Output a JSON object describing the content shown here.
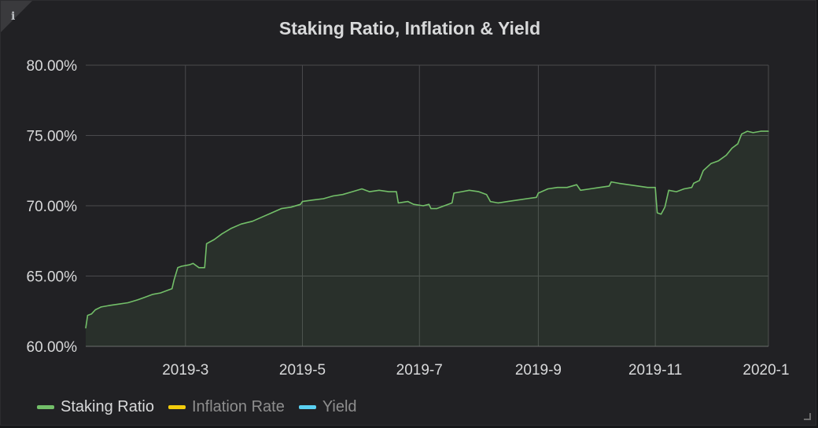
{
  "panel": {
    "title": "Staking Ratio, Inflation & Yield",
    "info_icon": "i"
  },
  "colors": {
    "staking_ratio": "#73bf69",
    "inflation_rate": "#f2cc0c",
    "yield": "#5ad1f2",
    "grid": "#4a4a4d",
    "text": "#d8d9da"
  },
  "chart_data": {
    "type": "line",
    "title": "Staking Ratio, Inflation & Yield",
    "xlabel": "",
    "ylabel": "",
    "x_range": [
      "2019-01-08",
      "2019-12-30"
    ],
    "ylim": [
      60,
      80
    ],
    "y_ticks": [
      "60.00%",
      "65.00%",
      "70.00%",
      "75.00%",
      "80.00%"
    ],
    "x_ticks": [
      "2019-3",
      "2019-5",
      "2019-7",
      "2019-9",
      "2019-11",
      "2020-1"
    ],
    "grid": true,
    "legend_position": "bottom-left",
    "series": [
      {
        "name": "Staking Ratio",
        "visible": true,
        "fill": true,
        "points": [
          [
            "2019-01-08",
            61.3
          ],
          [
            "2019-01-09",
            62.2
          ],
          [
            "2019-01-11",
            62.3
          ],
          [
            "2019-01-13",
            62.6
          ],
          [
            "2019-01-16",
            62.8
          ],
          [
            "2019-01-20",
            62.9
          ],
          [
            "2019-01-25",
            63.0
          ],
          [
            "2019-01-30",
            63.1
          ],
          [
            "2019-02-04",
            63.3
          ],
          [
            "2019-02-08",
            63.5
          ],
          [
            "2019-02-12",
            63.7
          ],
          [
            "2019-02-16",
            63.8
          ],
          [
            "2019-02-20",
            64.0
          ],
          [
            "2019-02-22",
            64.1
          ],
          [
            "2019-02-23",
            64.7
          ],
          [
            "2019-02-25",
            65.6
          ],
          [
            "2019-02-27",
            65.7
          ],
          [
            "2019-03-03",
            65.8
          ],
          [
            "2019-03-05",
            65.9
          ],
          [
            "2019-03-08",
            65.6
          ],
          [
            "2019-03-11",
            65.6
          ],
          [
            "2019-03-12",
            67.3
          ],
          [
            "2019-03-16",
            67.6
          ],
          [
            "2019-03-20",
            68.0
          ],
          [
            "2019-03-25",
            68.4
          ],
          [
            "2019-03-30",
            68.7
          ],
          [
            "2019-04-05",
            68.9
          ],
          [
            "2019-04-10",
            69.2
          ],
          [
            "2019-04-15",
            69.5
          ],
          [
            "2019-04-20",
            69.8
          ],
          [
            "2019-04-25",
            69.9
          ],
          [
            "2019-04-30",
            70.1
          ],
          [
            "2019-05-01",
            70.3
          ],
          [
            "2019-05-06",
            70.4
          ],
          [
            "2019-05-12",
            70.5
          ],
          [
            "2019-05-17",
            70.7
          ],
          [
            "2019-05-22",
            70.8
          ],
          [
            "2019-05-27",
            71.0
          ],
          [
            "2019-06-01",
            71.2
          ],
          [
            "2019-06-05",
            71.0
          ],
          [
            "2019-06-10",
            71.1
          ],
          [
            "2019-06-15",
            71.0
          ],
          [
            "2019-06-19",
            71.0
          ],
          [
            "2019-06-20",
            70.2
          ],
          [
            "2019-06-25",
            70.3
          ],
          [
            "2019-06-28",
            70.1
          ],
          [
            "2019-07-03",
            70.0
          ],
          [
            "2019-07-06",
            70.1
          ],
          [
            "2019-07-07",
            69.8
          ],
          [
            "2019-07-10",
            69.8
          ],
          [
            "2019-07-14",
            70.0
          ],
          [
            "2019-07-18",
            70.2
          ],
          [
            "2019-07-19",
            70.9
          ],
          [
            "2019-07-23",
            71.0
          ],
          [
            "2019-07-27",
            71.1
          ],
          [
            "2019-08-01",
            71.0
          ],
          [
            "2019-08-05",
            70.8
          ],
          [
            "2019-08-07",
            70.3
          ],
          [
            "2019-08-11",
            70.2
          ],
          [
            "2019-08-16",
            70.3
          ],
          [
            "2019-08-21",
            70.4
          ],
          [
            "2019-08-26",
            70.5
          ],
          [
            "2019-08-31",
            70.6
          ],
          [
            "2019-09-01",
            70.9
          ],
          [
            "2019-09-06",
            71.2
          ],
          [
            "2019-09-11",
            71.3
          ],
          [
            "2019-09-16",
            71.3
          ],
          [
            "2019-09-21",
            71.5
          ],
          [
            "2019-09-23",
            71.1
          ],
          [
            "2019-09-28",
            71.2
          ],
          [
            "2019-10-03",
            71.3
          ],
          [
            "2019-10-08",
            71.4
          ],
          [
            "2019-10-09",
            71.7
          ],
          [
            "2019-10-13",
            71.6
          ],
          [
            "2019-10-18",
            71.5
          ],
          [
            "2019-10-23",
            71.4
          ],
          [
            "2019-10-28",
            71.3
          ],
          [
            "2019-11-01",
            71.3
          ],
          [
            "2019-11-02",
            69.5
          ],
          [
            "2019-11-04",
            69.4
          ],
          [
            "2019-11-06",
            69.9
          ],
          [
            "2019-11-08",
            71.1
          ],
          [
            "2019-11-12",
            71.0
          ],
          [
            "2019-11-16",
            71.2
          ],
          [
            "2019-11-20",
            71.3
          ],
          [
            "2019-11-21",
            71.6
          ],
          [
            "2019-11-24",
            71.8
          ],
          [
            "2019-11-26",
            72.5
          ],
          [
            "2019-11-30",
            73.0
          ],
          [
            "2019-12-04",
            73.2
          ],
          [
            "2019-12-08",
            73.6
          ],
          [
            "2019-12-11",
            74.1
          ],
          [
            "2019-12-14",
            74.4
          ],
          [
            "2019-12-16",
            75.1
          ],
          [
            "2019-12-19",
            75.3
          ],
          [
            "2019-12-22",
            75.2
          ],
          [
            "2019-12-26",
            75.3
          ],
          [
            "2019-12-30",
            75.3
          ]
        ]
      },
      {
        "name": "Inflation Rate",
        "visible": false,
        "points": []
      },
      {
        "name": "Yield",
        "visible": false,
        "points": []
      }
    ]
  },
  "legend": [
    {
      "label": "Staking Ratio",
      "color": "#73bf69",
      "active": true
    },
    {
      "label": "Inflation Rate",
      "color": "#f2cc0c",
      "active": false
    },
    {
      "label": "Yield",
      "color": "#5ad1f2",
      "active": false
    }
  ]
}
